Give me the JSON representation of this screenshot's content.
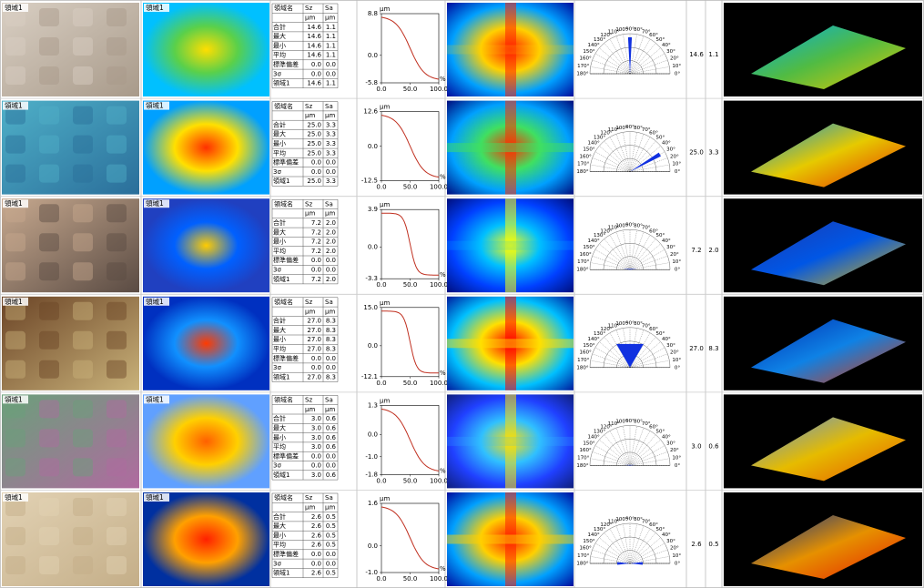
{
  "region_label": "領域1",
  "table_header": [
    "領域名",
    "Sz",
    "Sa"
  ],
  "table_units": [
    "μm",
    "μm"
  ],
  "profile_units": {
    "y": "μm",
    "x": "%"
  },
  "profile_xticks": [
    {
      "value": 0,
      "label": "0.0"
    },
    {
      "value": 50,
      "label": "50.0"
    },
    {
      "value": 100,
      "label": "100.0"
    }
  ],
  "polar_labels": [
    "0°",
    "10°",
    "20°",
    "30°",
    "40°",
    "50°",
    "60°",
    "70°",
    "80°",
    "90°",
    "100°",
    "110°",
    "120°",
    "130°",
    "140°",
    "150°",
    "160°",
    "170°",
    "180°"
  ],
  "rows": [
    {
      "sz": "14.6",
      "sa": "1.1",
      "table": [
        [
          "合計",
          "14.6",
          "1.1"
        ],
        [
          "最大",
          "14.6",
          "1.1"
        ],
        [
          "最小",
          "14.6",
          "1.1"
        ],
        [
          "平均",
          "14.6",
          "1.1"
        ],
        [
          "標準偏差",
          "0.0",
          "0.0"
        ],
        [
          "3σ",
          "0.0",
          "0.0"
        ],
        [
          "領域1",
          "14.6",
          "1.1"
        ]
      ],
      "yticks": [
        8.8,
        {
          "value": 0,
          "label": "0.0"
        },
        -5.8
      ]
    },
    {
      "sz": "25.0",
      "sa": "3.3",
      "table": [
        [
          "合計",
          "25.0",
          "3.3"
        ],
        [
          "最大",
          "25.0",
          "3.3"
        ],
        [
          "最小",
          "25.0",
          "3.3"
        ],
        [
          "平均",
          "25.0",
          "3.3"
        ],
        [
          "標準偏差",
          "0.0",
          "0.0"
        ],
        [
          "3σ",
          "0.0",
          "0.0"
        ],
        [
          "領域1",
          "25.0",
          "3.3"
        ]
      ],
      "yticks": [
        12.6,
        {
          "value": 0,
          "label": "0.0"
        },
        -12.5
      ]
    },
    {
      "sz": "7.2",
      "sa": "2.0",
      "table": [
        [
          "合計",
          "7.2",
          "2.0"
        ],
        [
          "最大",
          "7.2",
          "2.0"
        ],
        [
          "最小",
          "7.2",
          "2.0"
        ],
        [
          "平均",
          "7.2",
          "2.0"
        ],
        [
          "標準偏差",
          "0.0",
          "0.0"
        ],
        [
          "3σ",
          "0.0",
          "0.0"
        ],
        [
          "領域1",
          "7.2",
          "2.0"
        ]
      ],
      "yticks": [
        3.9,
        {
          "value": 0,
          "label": "0.0"
        },
        -3.3
      ]
    },
    {
      "sz": "27.0",
      "sa": "8.3",
      "table": [
        [
          "合計",
          "27.0",
          "8.3"
        ],
        [
          "最大",
          "27.0",
          "8.3"
        ],
        [
          "最小",
          "27.0",
          "8.3"
        ],
        [
          "平均",
          "27.0",
          "8.3"
        ],
        [
          "標準偏差",
          "0.0",
          "0.0"
        ],
        [
          "3σ",
          "0.0",
          "0.0"
        ],
        [
          "領域1",
          "27.0",
          "8.3"
        ]
      ],
      "yticks": [
        {
          "value": 15,
          "label": "15.0"
        },
        {
          "value": 0,
          "label": "0.0"
        },
        -12.1
      ]
    },
    {
      "sz": "3.0",
      "sa": "0.6",
      "table": [
        [
          "合計",
          "3.0",
          "0.6"
        ],
        [
          "最大",
          "3.0",
          "0.6"
        ],
        [
          "最小",
          "3.0",
          "0.6"
        ],
        [
          "平均",
          "3.0",
          "0.6"
        ],
        [
          "標準偏差",
          "0.0",
          "0.0"
        ],
        [
          "3σ",
          "0.0",
          "0.0"
        ],
        [
          "領域1",
          "3.0",
          "0.6"
        ]
      ],
      "yticks": [
        1.3,
        {
          "value": 0,
          "label": "0.0"
        },
        {
          "value": -1,
          "label": "-1.0"
        },
        -1.8
      ]
    },
    {
      "sz": "2.6",
      "sa": "0.5",
      "table": [
        [
          "合計",
          "2.6",
          "0.5"
        ],
        [
          "最大",
          "2.6",
          "0.5"
        ],
        [
          "最小",
          "2.6",
          "0.5"
        ],
        [
          "平均",
          "2.6",
          "0.5"
        ],
        [
          "標準偏差",
          "0.0",
          "0.0"
        ],
        [
          "3σ",
          "0.0",
          "0.0"
        ],
        [
          "領域1",
          "2.6",
          "0.5"
        ]
      ],
      "yticks": [
        1.6,
        {
          "value": 0,
          "label": "0.0"
        },
        {
          "value": -1,
          "label": "-1.0"
        }
      ]
    }
  ]
}
